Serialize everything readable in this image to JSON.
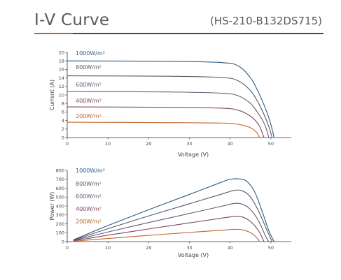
{
  "header": {
    "title": "I-V Curve",
    "model": "(HS-210-B132DS715)",
    "accent_color": "#c0652a",
    "rule_color": "#2a4c7a"
  },
  "chart_data": [
    {
      "type": "line",
      "xlabel": "Voltage (V)",
      "ylabel": "Current (A)",
      "xlim": [
        0,
        55
      ],
      "ylim": [
        0,
        20
      ],
      "x_ticks": [
        "0",
        "10",
        "20",
        "30",
        "40",
        "50"
      ],
      "y_ticks": [
        "0",
        "2",
        "4",
        "6",
        "8",
        "10",
        "12",
        "14",
        "16",
        "18",
        "20"
      ],
      "grid": false,
      "series": [
        {
          "name": "1000W/m²",
          "color": "#2a5b86",
          "points": [
            [
              0,
              18.0
            ],
            [
              25,
              17.9
            ],
            [
              38,
              17.6
            ],
            [
              42,
              16.8
            ],
            [
              45,
              14.0
            ],
            [
              47,
              10.5
            ],
            [
              49,
              6.0
            ],
            [
              50,
              3.0
            ],
            [
              50.8,
              0
            ]
          ]
        },
        {
          "name": "800W/m²",
          "color": "#555a66",
          "points": [
            [
              0,
              14.5
            ],
            [
              25,
              14.4
            ],
            [
              38,
              14.1
            ],
            [
              42,
              13.3
            ],
            [
              45,
              11.0
            ],
            [
              47,
              8.0
            ],
            [
              48.5,
              5.0
            ],
            [
              49.5,
              2.5
            ],
            [
              50.3,
              0
            ]
          ]
        },
        {
          "name": "600W/m²",
          "color": "#655c76",
          "points": [
            [
              0,
              10.8
            ],
            [
              25,
              10.7
            ],
            [
              38,
              10.4
            ],
            [
              42,
              9.8
            ],
            [
              45,
              8.0
            ],
            [
              47,
              5.5
            ],
            [
              48.5,
              3.0
            ],
            [
              49.5,
              0
            ]
          ]
        },
        {
          "name": "400W/m²",
          "color": "#7a4a60",
          "points": [
            [
              0,
              7.2
            ],
            [
              25,
              7.1
            ],
            [
              38,
              6.9
            ],
            [
              42,
              6.4
            ],
            [
              45,
              5.0
            ],
            [
              47,
              3.0
            ],
            [
              48.3,
              0
            ]
          ]
        },
        {
          "name": "200W/m²",
          "color": "#c0662a",
          "points": [
            [
              0,
              3.6
            ],
            [
              25,
              3.5
            ],
            [
              38,
              3.4
            ],
            [
              42,
              3.1
            ],
            [
              45,
              2.3
            ],
            [
              46.5,
              1.2
            ],
            [
              47.2,
              0
            ]
          ]
        }
      ]
    },
    {
      "type": "line",
      "xlabel": "Voltage (V)",
      "ylabel": "Power (W)",
      "xlim": [
        0,
        55
      ],
      "ylim": [
        0,
        800
      ],
      "x_ticks": [
        "0",
        "10",
        "20",
        "30",
        "40",
        "50"
      ],
      "y_ticks": [
        "0",
        "100",
        "200",
        "300",
        "400",
        "500",
        "600",
        "700",
        "800"
      ],
      "grid": false,
      "series": [
        {
          "name": "1000W/m²",
          "color": "#2a5b86",
          "points": [
            [
              1.5,
              20
            ],
            [
              10,
              180
            ],
            [
              20,
              358
            ],
            [
              30,
              530
            ],
            [
              38,
              670
            ],
            [
              40,
              700
            ],
            [
              42,
              705
            ],
            [
              44,
              680
            ],
            [
              46,
              560
            ],
            [
              48,
              320
            ],
            [
              49.5,
              120
            ],
            [
              50.8,
              0
            ]
          ]
        },
        {
          "name": "800W/m²",
          "color": "#555a66",
          "points": [
            [
              1.5,
              16
            ],
            [
              10,
              145
            ],
            [
              20,
              288
            ],
            [
              30,
              425
            ],
            [
              38,
              535
            ],
            [
              41,
              575
            ],
            [
              43,
              570
            ],
            [
              45,
              500
            ],
            [
              47,
              340
            ],
            [
              49,
              130
            ],
            [
              50.3,
              0
            ]
          ]
        },
        {
          "name": "600W/m²",
          "color": "#655c76",
          "points": [
            [
              1.5,
              12
            ],
            [
              10,
              108
            ],
            [
              20,
              214
            ],
            [
              30,
              316
            ],
            [
              38,
              398
            ],
            [
              41,
              428
            ],
            [
              43,
              420
            ],
            [
              45,
              360
            ],
            [
              47,
              230
            ],
            [
              48.7,
              60
            ],
            [
              49.5,
              0
            ]
          ]
        },
        {
          "name": "400W/m²",
          "color": "#7a4a60",
          "points": [
            [
              1.5,
              8
            ],
            [
              10,
              72
            ],
            [
              20,
              142
            ],
            [
              30,
              210
            ],
            [
              38,
              264
            ],
            [
              41,
              282
            ],
            [
              43,
              276
            ],
            [
              45,
              225
            ],
            [
              47,
              120
            ],
            [
              48.3,
              0
            ]
          ]
        },
        {
          "name": "200W/m²",
          "color": "#c0662a",
          "points": [
            [
              1.5,
              4
            ],
            [
              10,
              35
            ],
            [
              20,
              70
            ],
            [
              30,
              103
            ],
            [
              38,
              128
            ],
            [
              41,
              138
            ],
            [
              43,
              133
            ],
            [
              45,
              100
            ],
            [
              46.5,
              45
            ],
            [
              47.2,
              0
            ]
          ]
        }
      ]
    }
  ]
}
